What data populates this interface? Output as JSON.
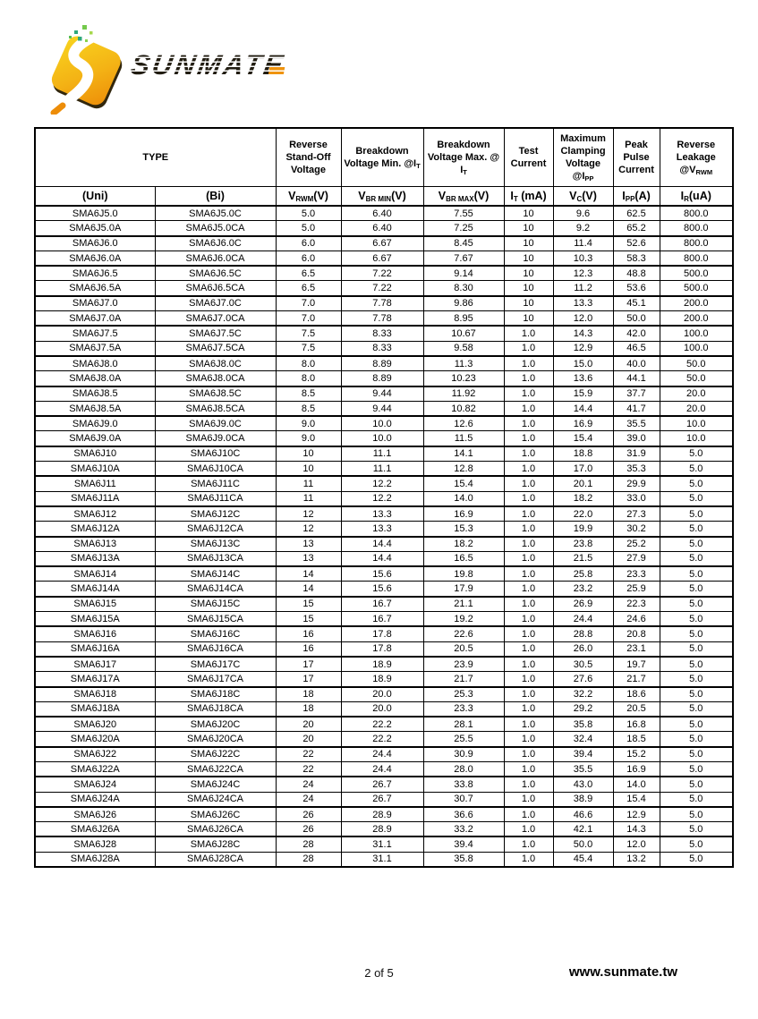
{
  "logo": {
    "brand": "SUNMATE"
  },
  "footer": {
    "page_number": "2 of 5",
    "website": "www.sunmate.tw"
  },
  "colors": {
    "logo_gradient_start": "#f8d51f",
    "logo_gradient_end": "#ed8d08",
    "logo_text": "#211c11",
    "sparkle_green": "#2fa87b",
    "table_border": "#000000"
  },
  "table": {
    "header_top": [
      {
        "text": "TYPE"
      },
      {
        "text": "Reverse Stand-Off Voltage"
      },
      {
        "text": "Breakdown Voltage Min. @I",
        "sub": "T"
      },
      {
        "text": "Breakdown Voltage Max. @ I",
        "sub": "T"
      },
      {
        "text": "Test Current"
      },
      {
        "text": "Maximum Clamping Voltage @I",
        "sub": "PP"
      },
      {
        "text": "Peak Pulse Current"
      },
      {
        "text": "Reverse Leakage @V",
        "sub": "RWM"
      }
    ],
    "header_units": [
      {
        "pre": "(Uni)"
      },
      {
        "pre": "(Bi)"
      },
      {
        "pre": "V",
        "sub": "RWM",
        "post": "(V)"
      },
      {
        "pre": "V",
        "sub": "BR MIN",
        "post": "(V)"
      },
      {
        "pre": "V",
        "sub": "BR MAX",
        "post": "(V)"
      },
      {
        "pre": "I",
        "sub": "T",
        "post": " (mA)"
      },
      {
        "pre": "V",
        "sub": "C",
        "post": "(V)"
      },
      {
        "pre": "I",
        "sub": "PP",
        "post": "(A)"
      },
      {
        "pre": "I",
        "sub": "R",
        "post": "(uA)"
      }
    ],
    "rows": [
      [
        "SMA6J5.0",
        "SMA6J5.0C",
        "5.0",
        "6.40",
        "7.55",
        "10",
        "9.6",
        "62.5",
        "800.0"
      ],
      [
        "SMA6J5.0A",
        "SMA6J5.0CA",
        "5.0",
        "6.40",
        "7.25",
        "10",
        "9.2",
        "65.2",
        "800.0"
      ],
      [
        "SMA6J6.0",
        "SMA6J6.0C",
        "6.0",
        "6.67",
        "8.45",
        "10",
        "11.4",
        "52.6",
        "800.0"
      ],
      [
        "SMA6J6.0A",
        "SMA6J6.0CA",
        "6.0",
        "6.67",
        "7.67",
        "10",
        "10.3",
        "58.3",
        "800.0"
      ],
      [
        "SMA6J6.5",
        "SMA6J6.5C",
        "6.5",
        "7.22",
        "9.14",
        "10",
        "12.3",
        "48.8",
        "500.0"
      ],
      [
        "SMA6J6.5A",
        "SMA6J6.5CA",
        "6.5",
        "7.22",
        "8.30",
        "10",
        "11.2",
        "53.6",
        "500.0"
      ],
      [
        "SMA6J7.0",
        "SMA6J7.0C",
        "7.0",
        "7.78",
        "9.86",
        "10",
        "13.3",
        "45.1",
        "200.0"
      ],
      [
        "SMA6J7.0A",
        "SMA6J7.0CA",
        "7.0",
        "7.78",
        "8.95",
        "10",
        "12.0",
        "50.0",
        "200.0"
      ],
      [
        "SMA6J7.5",
        "SMA6J7.5C",
        "7.5",
        "8.33",
        "10.67",
        "1.0",
        "14.3",
        "42.0",
        "100.0"
      ],
      [
        "SMA6J7.5A",
        "SMA6J7.5CA",
        "7.5",
        "8.33",
        "9.58",
        "1.0",
        "12.9",
        "46.5",
        "100.0"
      ],
      [
        "SMA6J8.0",
        "SMA6J8.0C",
        "8.0",
        "8.89",
        "11.3",
        "1.0",
        "15.0",
        "40.0",
        "50.0"
      ],
      [
        "SMA6J8.0A",
        "SMA6J8.0CA",
        "8.0",
        "8.89",
        "10.23",
        "1.0",
        "13.6",
        "44.1",
        "50.0"
      ],
      [
        "SMA6J8.5",
        "SMA6J8.5C",
        "8.5",
        "9.44",
        "11.92",
        "1.0",
        "15.9",
        "37.7",
        "20.0"
      ],
      [
        "SMA6J8.5A",
        "SMA6J8.5CA",
        "8.5",
        "9.44",
        "10.82",
        "1.0",
        "14.4",
        "41.7",
        "20.0"
      ],
      [
        "SMA6J9.0",
        "SMA6J9.0C",
        "9.0",
        "10.0",
        "12.6",
        "1.0",
        "16.9",
        "35.5",
        "10.0"
      ],
      [
        "SMA6J9.0A",
        "SMA6J9.0CA",
        "9.0",
        "10.0",
        "11.5",
        "1.0",
        "15.4",
        "39.0",
        "10.0"
      ],
      [
        "SMA6J10",
        "SMA6J10C",
        "10",
        "11.1",
        "14.1",
        "1.0",
        "18.8",
        "31.9",
        "5.0"
      ],
      [
        "SMA6J10A",
        "SMA6J10CA",
        "10",
        "11.1",
        "12.8",
        "1.0",
        "17.0",
        "35.3",
        "5.0"
      ],
      [
        "SMA6J11",
        "SMA6J11C",
        "11",
        "12.2",
        "15.4",
        "1.0",
        "20.1",
        "29.9",
        "5.0"
      ],
      [
        "SMA6J11A",
        "SMA6J11CA",
        "11",
        "12.2",
        "14.0",
        "1.0",
        "18.2",
        "33.0",
        "5.0"
      ],
      [
        "SMA6J12",
        "SMA6J12C",
        "12",
        "13.3",
        "16.9",
        "1.0",
        "22.0",
        "27.3",
        "5.0"
      ],
      [
        "SMA6J12A",
        "SMA6J12CA",
        "12",
        "13.3",
        "15.3",
        "1.0",
        "19.9",
        "30.2",
        "5.0"
      ],
      [
        "SMA6J13",
        "SMA6J13C",
        "13",
        "14.4",
        "18.2",
        "1.0",
        "23.8",
        "25.2",
        "5.0"
      ],
      [
        "SMA6J13A",
        "SMA6J13CA",
        "13",
        "14.4",
        "16.5",
        "1.0",
        "21.5",
        "27.9",
        "5.0"
      ],
      [
        "SMA6J14",
        "SMA6J14C",
        "14",
        "15.6",
        "19.8",
        "1.0",
        "25.8",
        "23.3",
        "5.0"
      ],
      [
        "SMA6J14A",
        "SMA6J14CA",
        "14",
        "15.6",
        "17.9",
        "1.0",
        "23.2",
        "25.9",
        "5.0"
      ],
      [
        "SMA6J15",
        "SMA6J15C",
        "15",
        "16.7",
        "21.1",
        "1.0",
        "26.9",
        "22.3",
        "5.0"
      ],
      [
        "SMA6J15A",
        "SMA6J15CA",
        "15",
        "16.7",
        "19.2",
        "1.0",
        "24.4",
        "24.6",
        "5.0"
      ],
      [
        "SMA6J16",
        "SMA6J16C",
        "16",
        "17.8",
        "22.6",
        "1.0",
        "28.8",
        "20.8",
        "5.0"
      ],
      [
        "SMA6J16A",
        "SMA6J16CA",
        "16",
        "17.8",
        "20.5",
        "1.0",
        "26.0",
        "23.1",
        "5.0"
      ],
      [
        "SMA6J17",
        "SMA6J17C",
        "17",
        "18.9",
        "23.9",
        "1.0",
        "30.5",
        "19.7",
        "5.0"
      ],
      [
        "SMA6J17A",
        "SMA6J17CA",
        "17",
        "18.9",
        "21.7",
        "1.0",
        "27.6",
        "21.7",
        "5.0"
      ],
      [
        "SMA6J18",
        "SMA6J18C",
        "18",
        "20.0",
        "25.3",
        "1.0",
        "32.2",
        "18.6",
        "5.0"
      ],
      [
        "SMA6J18A",
        "SMA6J18CA",
        "18",
        "20.0",
        "23.3",
        "1.0",
        "29.2",
        "20.5",
        "5.0"
      ],
      [
        "SMA6J20",
        "SMA6J20C",
        "20",
        "22.2",
        "28.1",
        "1.0",
        "35.8",
        "16.8",
        "5.0"
      ],
      [
        "SMA6J20A",
        "SMA6J20CA",
        "20",
        "22.2",
        "25.5",
        "1.0",
        "32.4",
        "18.5",
        "5.0"
      ],
      [
        "SMA6J22",
        "SMA6J22C",
        "22",
        "24.4",
        "30.9",
        "1.0",
        "39.4",
        "15.2",
        "5.0"
      ],
      [
        "SMA6J22A",
        "SMA6J22CA",
        "22",
        "24.4",
        "28.0",
        "1.0",
        "35.5",
        "16.9",
        "5.0"
      ],
      [
        "SMA6J24",
        "SMA6J24C",
        "24",
        "26.7",
        "33.8",
        "1.0",
        "43.0",
        "14.0",
        "5.0"
      ],
      [
        "SMA6J24A",
        "SMA6J24CA",
        "24",
        "26.7",
        "30.7",
        "1.0",
        "38.9",
        "15.4",
        "5.0"
      ],
      [
        "SMA6J26",
        "SMA6J26C",
        "26",
        "28.9",
        "36.6",
        "1.0",
        "46.6",
        "12.9",
        "5.0"
      ],
      [
        "SMA6J26A",
        "SMA6J26CA",
        "26",
        "28.9",
        "33.2",
        "1.0",
        "42.1",
        "14.3",
        "5.0"
      ],
      [
        "SMA6J28",
        "SMA6J28C",
        "28",
        "31.1",
        "39.4",
        "1.0",
        "50.0",
        "12.0",
        "5.0"
      ],
      [
        "SMA6J28A",
        "SMA6J28CA",
        "28",
        "31.1",
        "35.8",
        "1.0",
        "45.4",
        "13.2",
        "5.0"
      ]
    ]
  }
}
